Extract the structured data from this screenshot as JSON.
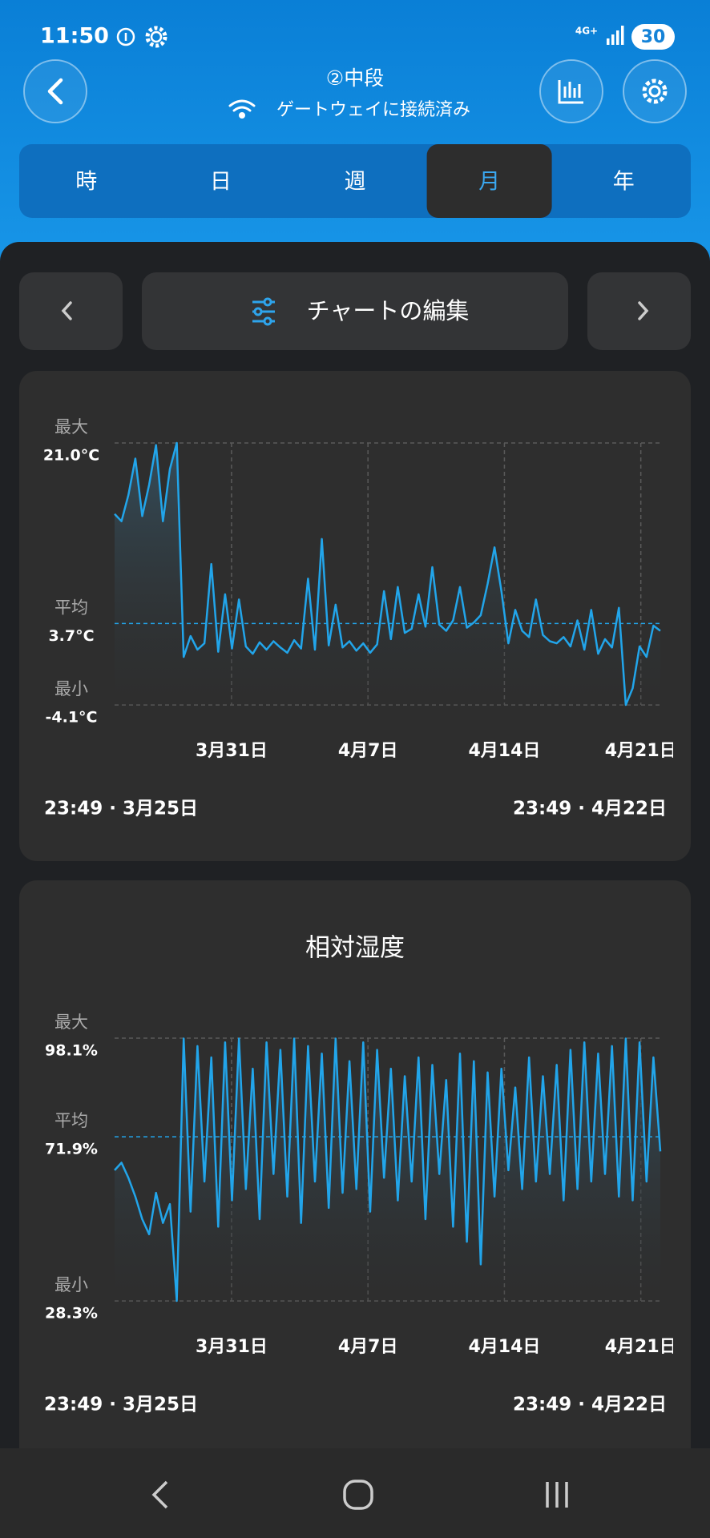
{
  "status_bar": {
    "time": "11:50",
    "network": "4G+",
    "battery": "30"
  },
  "header": {
    "title": "②中段",
    "subtitle": "ゲートウェイに接続済み"
  },
  "tabs": {
    "items": [
      "時",
      "日",
      "週",
      "月",
      "年"
    ],
    "active": 3
  },
  "toolbar": {
    "edit_button": "チャートの編集"
  },
  "charts": [
    {
      "type": "area",
      "color": "#22a5ea",
      "max": {
        "caption": "最大",
        "value": 21.0,
        "label": "21.0°C"
      },
      "avg": {
        "caption": "平均",
        "value": 3.7,
        "label": "3.7°C"
      },
      "min": {
        "caption": "最小",
        "value": -4.1,
        "label": "-4.1°C"
      },
      "xlim": [
        0,
        28
      ],
      "xticks": [
        {
          "value": 6,
          "label": "3月31日"
        },
        {
          "value": 13,
          "label": "4月7日"
        },
        {
          "value": 20,
          "label": "4月14日"
        },
        {
          "value": 27,
          "label": "4月21日"
        }
      ],
      "start_label": "23:49 · 3月25日",
      "end_label": "23:49 · 4月22日",
      "values": [
        14.2,
        13.5,
        16.0,
        19.5,
        14.0,
        17.0,
        20.8,
        13.5,
        18.5,
        21.0,
        0.5,
        2.5,
        1.2,
        1.8,
        9.4,
        1.0,
        6.5,
        1.3,
        6.0,
        1.5,
        0.8,
        1.9,
        1.2,
        2.0,
        1.4,
        0.9,
        2.1,
        1.3,
        8.0,
        1.2,
        11.8,
        1.6,
        5.5,
        1.4,
        2.0,
        1.1,
        1.8,
        0.9,
        1.7,
        6.8,
        2.2,
        7.2,
        2.8,
        3.2,
        6.5,
        3.4,
        9.1,
        3.6,
        3.0,
        4.0,
        7.2,
        3.3,
        3.8,
        4.5,
        7.5,
        11.0,
        6.8,
        1.8,
        5.0,
        3.0,
        2.4,
        6.0,
        2.6,
        2.0,
        1.8,
        2.4,
        1.5,
        4.0,
        1.2,
        5.0,
        0.8,
        2.2,
        1.4,
        5.2,
        -4.1,
        -2.5,
        1.5,
        0.5,
        3.5,
        3.0
      ]
    },
    {
      "type": "area",
      "color": "#22a5ea",
      "title": "相対湿度",
      "max": {
        "caption": "最大",
        "value": 98.1,
        "label": "98.1%"
      },
      "avg": {
        "caption": "平均",
        "value": 71.9,
        "label": "71.9%"
      },
      "min": {
        "caption": "最小",
        "value": 28.3,
        "label": "28.3%"
      },
      "xlim": [
        0,
        28
      ],
      "xticks": [
        {
          "value": 6,
          "label": "3月31日"
        },
        {
          "value": 13,
          "label": "4月7日"
        },
        {
          "value": 20,
          "label": "4月14日"
        },
        {
          "value": 27,
          "label": "4月21日"
        }
      ],
      "start_label": "23:49 · 3月25日",
      "end_label": "23:49 · 4月22日",
      "values": [
        63,
        65,
        61,
        56,
        50,
        46,
        57,
        49,
        54,
        28.3,
        98,
        52,
        96,
        60,
        93,
        48,
        97,
        55,
        98,
        58,
        90,
        50,
        97,
        62,
        95,
        56,
        98,
        49,
        96,
        60,
        94,
        53,
        98,
        57,
        92,
        58,
        97,
        52,
        95,
        61,
        90,
        55,
        88,
        60,
        93,
        50,
        91,
        62,
        87,
        48,
        94,
        44,
        92,
        38,
        89,
        56,
        90,
        63,
        85,
        58,
        93,
        60,
        88,
        62,
        91,
        55,
        95,
        58,
        97,
        60,
        94,
        62,
        96,
        56,
        98,
        55,
        97,
        60,
        93,
        68
      ]
    }
  ]
}
